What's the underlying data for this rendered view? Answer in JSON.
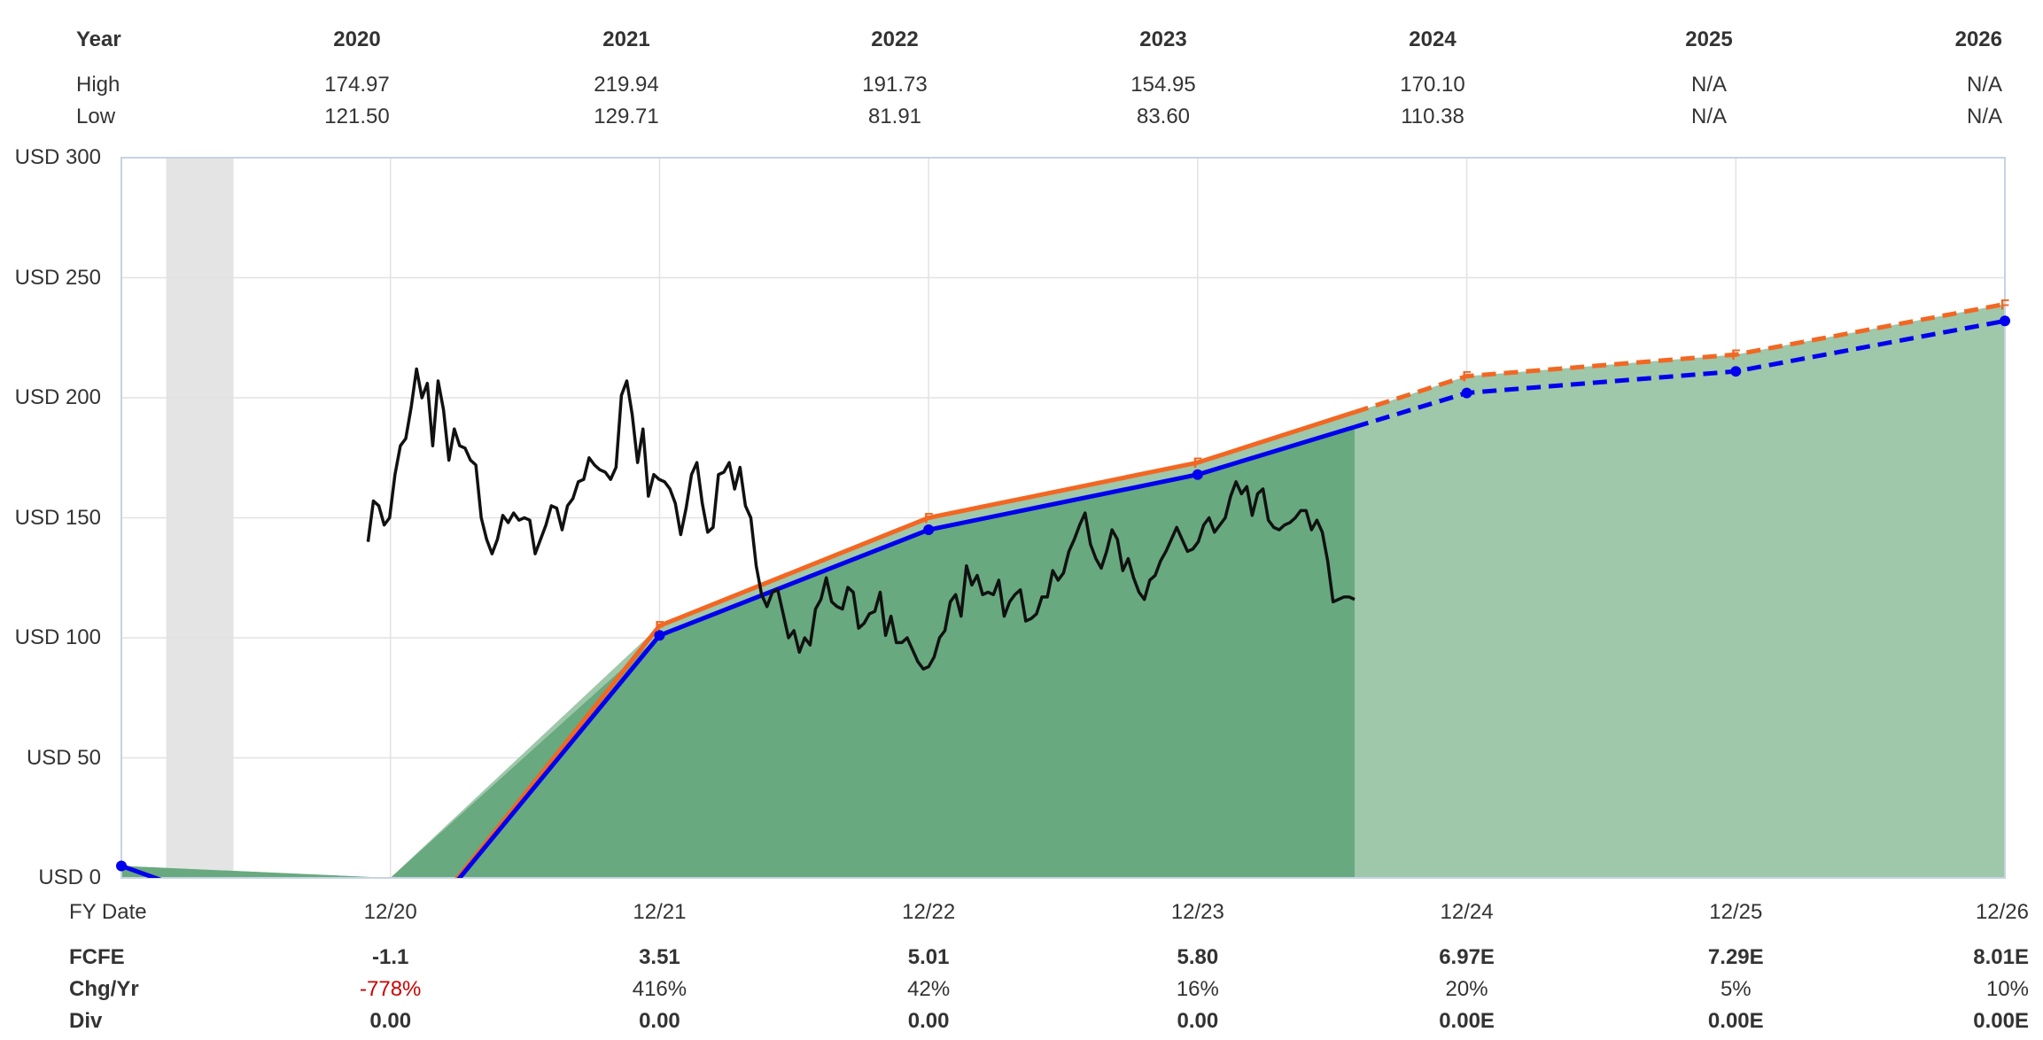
{
  "header_table": {
    "row_labels": {
      "year": "Year",
      "high": "High",
      "low": "Low"
    },
    "columns": [
      {
        "year": "2020",
        "high": "174.97",
        "low": "121.50"
      },
      {
        "year": "2021",
        "high": "219.94",
        "low": "129.71"
      },
      {
        "year": "2022",
        "high": "191.73",
        "low": "81.91"
      },
      {
        "year": "2023",
        "high": "154.95",
        "low": "83.60"
      },
      {
        "year": "2024",
        "high": "170.10",
        "low": "110.38"
      },
      {
        "year": "2025",
        "high": "N/A",
        "low": "N/A"
      },
      {
        "year": "2026",
        "high": "N/A",
        "low": "N/A"
      }
    ]
  },
  "footer_table": {
    "row_labels": {
      "date": "FY Date",
      "fcfe": "FCFE",
      "chg": "Chg/Yr",
      "div": "Div"
    },
    "columns": [
      {
        "date": "12/20",
        "fcfe": "-1.1",
        "chg": "-778%",
        "div": "0.00",
        "chg_negative": true
      },
      {
        "date": "12/21",
        "fcfe": "3.51",
        "chg": "416%",
        "div": "0.00"
      },
      {
        "date": "12/22",
        "fcfe": "5.01",
        "chg": "42%",
        "div": "0.00"
      },
      {
        "date": "12/23",
        "fcfe": "5.80",
        "chg": "16%",
        "div": "0.00"
      },
      {
        "date": "12/24",
        "fcfe": "6.97E",
        "chg": "20%",
        "div": "0.00E"
      },
      {
        "date": "12/25",
        "fcfe": "7.29E",
        "chg": "5%",
        "div": "0.00E"
      },
      {
        "date": "12/26",
        "fcfe": "8.01E",
        "chg": "10%",
        "div": "0.00E"
      }
    ]
  },
  "chart_data": {
    "type": "line",
    "x_axis": {
      "label": "FY Date",
      "ticks": [
        "12/20",
        "12/21",
        "12/22",
        "12/23",
        "12/24",
        "12/25",
        "12/26"
      ],
      "range": [
        "12/19",
        "12/26"
      ]
    },
    "y_axis": {
      "ticks": [
        "USD 0",
        "USD 50",
        "USD 100",
        "USD 150",
        "USD 200",
        "USD 250",
        "USD 300"
      ],
      "ylim": [
        0,
        300
      ]
    },
    "grid": true,
    "forecast_marker": "F",
    "actual_until": "07/24",
    "shaded_period": [
      "02/20",
      "05/20"
    ],
    "series": [
      {
        "kind": "fair_value_orange",
        "color": "#f26722",
        "points": [
          {
            "x": "12/19",
            "y": 5
          },
          {
            "x": "12/20",
            "y": -35
          },
          {
            "x": "12/21",
            "y": 105
          },
          {
            "x": "12/22",
            "y": 150
          },
          {
            "x": "12/23",
            "y": 173
          },
          {
            "x": "12/24",
            "y": 209
          },
          {
            "x": "12/25",
            "y": 218
          },
          {
            "x": "12/26",
            "y": 239
          }
        ],
        "forecast_from_index": 5
      },
      {
        "kind": "earnings_blue",
        "color": "#0000ee",
        "points": [
          {
            "x": "12/19",
            "y": 5
          },
          {
            "x": "12/20",
            "y": -35
          },
          {
            "x": "12/21",
            "y": 101
          },
          {
            "x": "12/22",
            "y": 145
          },
          {
            "x": "12/23",
            "y": 168
          },
          {
            "x": "12/24",
            "y": 202
          },
          {
            "x": "12/25",
            "y": 211
          },
          {
            "x": "12/26",
            "y": 232
          }
        ],
        "forecast_from_index": 5
      },
      {
        "kind": "price_black",
        "color": "#111111",
        "x_start": "11/20",
        "x_end": "07/24",
        "values": [
          140,
          157,
          155,
          147,
          150,
          168,
          180,
          183,
          196,
          212,
          200,
          206,
          180,
          207,
          195,
          174,
          187,
          180,
          179,
          174,
          172,
          150,
          141,
          135,
          141,
          151,
          148,
          152,
          149,
          150,
          149,
          135,
          141,
          147,
          155,
          154,
          145,
          155,
          158,
          165,
          166,
          175,
          172,
          170,
          169,
          166,
          171,
          201,
          207,
          193,
          173,
          187,
          159,
          168,
          166,
          165,
          162,
          156,
          143,
          154,
          168,
          173,
          156,
          144,
          146,
          168,
          169,
          173,
          162,
          171,
          155,
          150,
          130,
          118,
          113,
          119,
          120,
          110,
          100,
          103,
          94,
          100,
          97,
          112,
          116,
          125,
          115,
          113,
          112,
          121,
          119,
          104,
          106,
          110,
          111,
          119,
          101,
          109,
          98,
          98,
          100,
          95,
          90,
          87,
          88,
          92,
          100,
          103,
          115,
          118,
          109,
          130,
          122,
          126,
          118,
          119,
          118,
          124,
          109,
          115,
          118,
          120,
          107,
          108,
          110,
          117,
          117,
          128,
          124,
          127,
          136,
          141,
          147,
          152,
          139,
          133,
          129,
          136,
          145,
          141,
          128,
          133,
          125,
          119,
          116,
          124,
          126,
          132,
          136,
          141,
          146,
          141,
          136,
          137,
          140,
          147,
          150,
          144,
          147,
          150,
          159,
          165,
          160,
          163,
          151,
          160,
          162,
          149,
          146,
          145,
          147,
          148,
          150,
          153,
          153,
          145,
          149,
          144,
          132,
          115,
          116,
          117,
          117,
          116
        ]
      }
    ]
  }
}
